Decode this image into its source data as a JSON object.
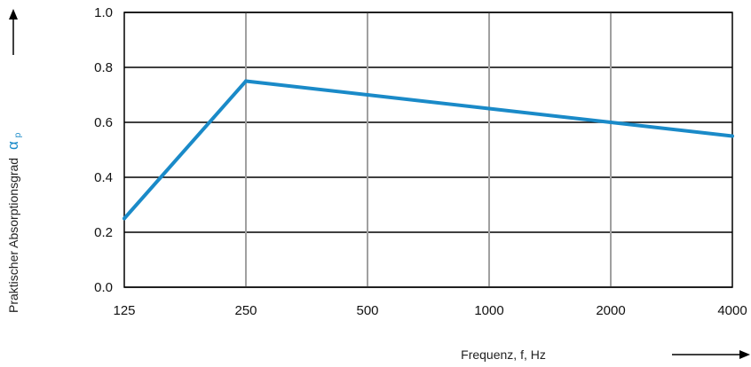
{
  "chart_data": {
    "type": "line",
    "title": "",
    "xlabel": "Frequenz, f, Hz",
    "ylabel": "Praktischer Absorptionsgrad",
    "ylabel_symbol": "α",
    "ylabel_subscript": "p",
    "categories": [
      "125",
      "250",
      "500",
      "1000",
      "2000",
      "4000"
    ],
    "series": [
      {
        "values": [
          0.25,
          0.75,
          0.7,
          0.65,
          0.6,
          0.55
        ]
      }
    ],
    "ylim": [
      0,
      1.0
    ],
    "yticks": [
      "0.0",
      "0.2",
      "0.4",
      "0.6",
      "0.8",
      "1.0"
    ],
    "grid": true,
    "legend": "none",
    "colors": {
      "line": "#1a8ac8",
      "ylabel_symbol": "#1a8ac8",
      "horizontal_grid": "#000000",
      "vertical_grid": "#a0a0a0"
    }
  }
}
